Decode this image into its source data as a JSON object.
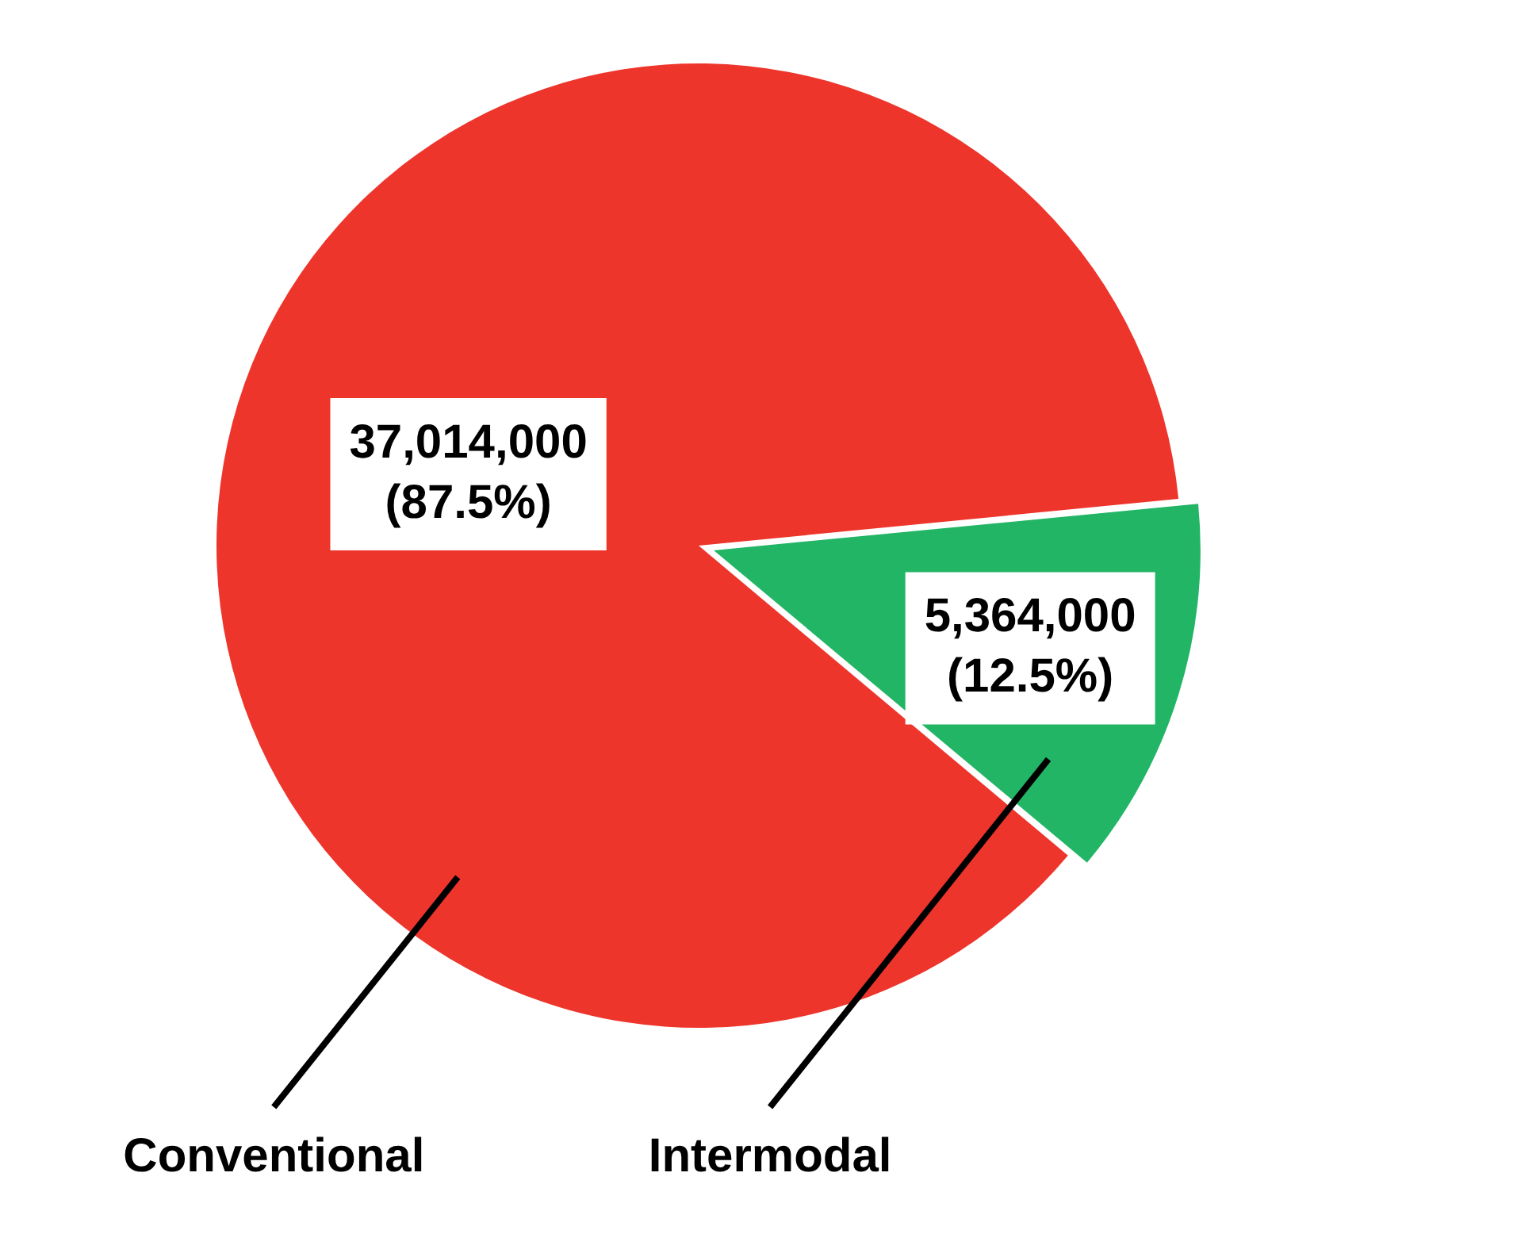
{
  "chart_data": {
    "type": "pie",
    "categories": [
      "Conventional",
      "Intermodal"
    ],
    "values": [
      37014000,
      5364000
    ],
    "colors": [
      "#ee352c",
      "#23b566"
    ],
    "value_labels": [
      "37,014,000 (87.5%)",
      "5,364,000 (12.5%)"
    ],
    "legend": false
  }
}
